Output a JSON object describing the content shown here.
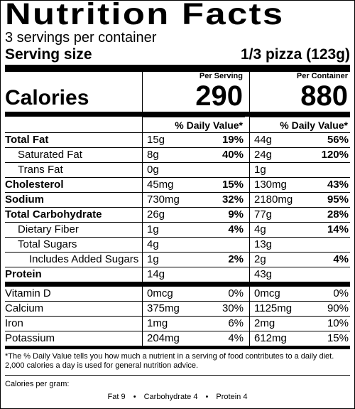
{
  "title": "Nutrition Facts",
  "servings": "3 servings per container",
  "serving_size": {
    "label": "Serving size",
    "value": "1/3 pizza (123g)"
  },
  "calories": {
    "label": "Calories",
    "per_serving_header": "Per Serving",
    "per_container_header": "Per Container",
    "per_serving": "290",
    "per_container": "880"
  },
  "daily_value_header": "% Daily Value*",
  "nutrients": [
    {
      "name": "Total Fat",
      "bold": true,
      "indent": 0,
      "ps_amt": "15g",
      "ps_pct": "19%",
      "pc_amt": "44g",
      "pc_pct": "56%"
    },
    {
      "name": "Saturated Fat",
      "bold": false,
      "indent": 1,
      "ps_amt": "8g",
      "ps_pct": "40%",
      "pc_amt": "24g",
      "pc_pct": "120%"
    },
    {
      "name": "Trans Fat",
      "bold": false,
      "indent": 1,
      "ps_amt": "0g",
      "ps_pct": "",
      "pc_amt": "1g",
      "pc_pct": ""
    },
    {
      "name": "Cholesterol",
      "bold": true,
      "indent": 0,
      "ps_amt": "45mg",
      "ps_pct": "15%",
      "pc_amt": "130mg",
      "pc_pct": "43%"
    },
    {
      "name": "Sodium",
      "bold": true,
      "indent": 0,
      "ps_amt": "730mg",
      "ps_pct": "32%",
      "pc_amt": "2180mg",
      "pc_pct": "95%"
    },
    {
      "name": "Total Carbohydrate",
      "bold": true,
      "indent": 0,
      "ps_amt": "26g",
      "ps_pct": "9%",
      "pc_amt": "77g",
      "pc_pct": "28%"
    },
    {
      "name": "Dietary Fiber",
      "bold": false,
      "indent": 1,
      "ps_amt": "1g",
      "ps_pct": "4%",
      "pc_amt": "4g",
      "pc_pct": "14%"
    },
    {
      "name": "Total Sugars",
      "bold": false,
      "indent": 1,
      "ps_amt": "4g",
      "ps_pct": "",
      "pc_amt": "13g",
      "pc_pct": ""
    },
    {
      "name": "Includes Added Sugars",
      "bold": false,
      "indent": 2,
      "ps_amt": "1g",
      "ps_pct": "2%",
      "pc_amt": "2g",
      "pc_pct": "4%"
    },
    {
      "name": "Protein",
      "bold": true,
      "indent": 0,
      "ps_amt": "14g",
      "ps_pct": "",
      "pc_amt": "43g",
      "pc_pct": ""
    }
  ],
  "vitamins": [
    {
      "name": "Vitamin D",
      "ps_amt": "0mcg",
      "ps_pct": "0%",
      "pc_amt": "0mcg",
      "pc_pct": "0%"
    },
    {
      "name": "Calcium",
      "ps_amt": "375mg",
      "ps_pct": "30%",
      "pc_amt": "1125mg",
      "pc_pct": "90%"
    },
    {
      "name": "Iron",
      "ps_amt": "1mg",
      "ps_pct": "6%",
      "pc_amt": "2mg",
      "pc_pct": "10%"
    },
    {
      "name": "Potassium",
      "ps_amt": "204mg",
      "ps_pct": "4%",
      "pc_amt": "612mg",
      "pc_pct": "15%"
    }
  ],
  "footnote": "*The % Daily Value tells you how much a nutrient in a serving of food contributes to a daily diet. 2,000 calories a day is used for general nutrition advice.",
  "calories_per_gram": {
    "label": "Calories per gram:",
    "fat": "Fat 9",
    "carbohydrate": "Carbohydrate 4",
    "protein": "Protein 4",
    "separator": "•"
  }
}
